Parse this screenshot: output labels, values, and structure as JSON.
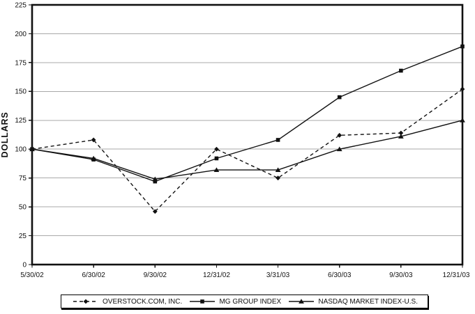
{
  "chart_data": {
    "type": "line",
    "title": "",
    "xlabel": "",
    "ylabel": "DOLLARS",
    "ylim": [
      0,
      225
    ],
    "ytick_step": 25,
    "grid": true,
    "legend_position": "bottom",
    "categories": [
      "5/30/02",
      "6/30/02",
      "9/30/02",
      "12/31/02",
      "3/31/03",
      "6/30/03",
      "9/30/03",
      "12/31/03"
    ],
    "series": [
      {
        "name": "OVERSTOCK.COM, INC.",
        "marker": "diamond",
        "line_style": "dashed",
        "values": [
          100,
          108,
          46,
          100,
          75,
          112,
          114,
          152
        ]
      },
      {
        "name": "MG GROUP INDEX",
        "marker": "square",
        "line_style": "solid",
        "values": [
          100,
          91,
          72,
          92,
          108,
          145,
          168,
          189
        ]
      },
      {
        "name": "NASDAQ MARKET INDEX-U.S.",
        "marker": "triangle",
        "line_style": "solid",
        "values": [
          100,
          92,
          74,
          82,
          82,
          100,
          111,
          125
        ]
      }
    ]
  },
  "colors": {
    "line": "#111111",
    "grid": "#a8a8a8",
    "background": "#ffffff"
  }
}
